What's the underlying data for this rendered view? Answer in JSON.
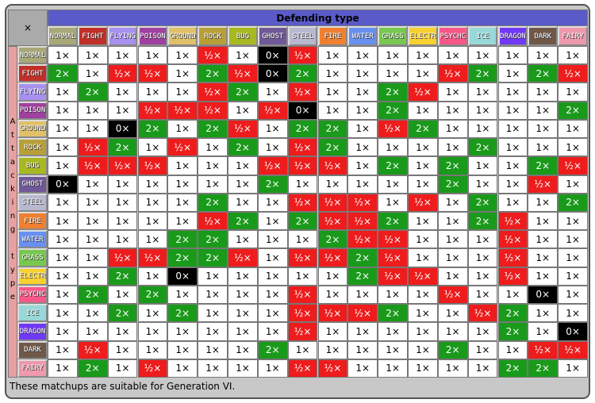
{
  "corner": "×",
  "header": "Defending type",
  "side": "Attacking type",
  "types": [
    "NORMAL",
    "FIGHT",
    "FLYING",
    "POISON",
    "GROUND",
    "ROCK",
    "BUG",
    "GHOST",
    "STEEL",
    "FIRE",
    "WATER",
    "GRASS",
    "ELECTR",
    "PSYCHC",
    "ICE",
    "DRAGON",
    "DARK",
    "FAIRY"
  ],
  "type_colors": [
    "#a8a878",
    "#c03028",
    "#a890f0",
    "#a040a0",
    "#e0c068",
    "#b8a038",
    "#a8b820",
    "#705898",
    "#b8b8d0",
    "#f08030",
    "#6890f0",
    "#78c850",
    "#f8d030",
    "#f85888",
    "#98d8d8",
    "#7038f8",
    "#705848",
    "#ee99ac"
  ],
  "rows": [
    [
      "1×",
      "1×",
      "1×",
      "1×",
      "1×",
      "½×",
      "1×",
      "0×",
      "½×",
      "1×",
      "1×",
      "1×",
      "1×",
      "1×",
      "1×",
      "1×",
      "1×",
      "1×"
    ],
    [
      "2×",
      "1×",
      "½×",
      "½×",
      "1×",
      "2×",
      "½×",
      "0×",
      "2×",
      "1×",
      "1×",
      "1×",
      "1×",
      "½×",
      "2×",
      "1×",
      "2×",
      "½×"
    ],
    [
      "1×",
      "2×",
      "1×",
      "1×",
      "1×",
      "½×",
      "2×",
      "1×",
      "½×",
      "1×",
      "1×",
      "2×",
      "½×",
      "1×",
      "1×",
      "1×",
      "1×",
      "1×"
    ],
    [
      "1×",
      "1×",
      "1×",
      "½×",
      "½×",
      "½×",
      "1×",
      "½×",
      "0×",
      "1×",
      "1×",
      "2×",
      "1×",
      "1×",
      "1×",
      "1×",
      "1×",
      "2×"
    ],
    [
      "1×",
      "1×",
      "0×",
      "2×",
      "1×",
      "2×",
      "½×",
      "1×",
      "2×",
      "2×",
      "1×",
      "½×",
      "2×",
      "1×",
      "1×",
      "1×",
      "1×",
      "1×"
    ],
    [
      "1×",
      "½×",
      "2×",
      "1×",
      "½×",
      "1×",
      "2×",
      "1×",
      "½×",
      "2×",
      "1×",
      "1×",
      "1×",
      "1×",
      "2×",
      "1×",
      "1×",
      "1×"
    ],
    [
      "1×",
      "½×",
      "½×",
      "½×",
      "1×",
      "1×",
      "1×",
      "½×",
      "½×",
      "½×",
      "1×",
      "2×",
      "1×",
      "2×",
      "1×",
      "1×",
      "2×",
      "½×"
    ],
    [
      "0×",
      "1×",
      "1×",
      "1×",
      "1×",
      "1×",
      "1×",
      "2×",
      "1×",
      "1×",
      "1×",
      "1×",
      "1×",
      "2×",
      "1×",
      "1×",
      "½×",
      "1×"
    ],
    [
      "1×",
      "1×",
      "1×",
      "1×",
      "1×",
      "2×",
      "1×",
      "1×",
      "½×",
      "½×",
      "½×",
      "1×",
      "½×",
      "1×",
      "2×",
      "1×",
      "1×",
      "2×"
    ],
    [
      "1×",
      "1×",
      "1×",
      "1×",
      "1×",
      "½×",
      "2×",
      "1×",
      "2×",
      "½×",
      "½×",
      "2×",
      "1×",
      "1×",
      "2×",
      "½×",
      "1×",
      "1×"
    ],
    [
      "1×",
      "1×",
      "1×",
      "1×",
      "2×",
      "2×",
      "1×",
      "1×",
      "1×",
      "2×",
      "½×",
      "½×",
      "1×",
      "1×",
      "1×",
      "½×",
      "1×",
      "1×"
    ],
    [
      "1×",
      "1×",
      "½×",
      "½×",
      "2×",
      "2×",
      "½×",
      "1×",
      "½×",
      "½×",
      "2×",
      "½×",
      "1×",
      "1×",
      "1×",
      "½×",
      "1×",
      "1×"
    ],
    [
      "1×",
      "1×",
      "2×",
      "1×",
      "0×",
      "1×",
      "1×",
      "1×",
      "1×",
      "1×",
      "2×",
      "½×",
      "½×",
      "1×",
      "1×",
      "½×",
      "1×",
      "1×"
    ],
    [
      "1×",
      "2×",
      "1×",
      "2×",
      "1×",
      "1×",
      "1×",
      "1×",
      "½×",
      "1×",
      "1×",
      "1×",
      "1×",
      "½×",
      "1×",
      "1×",
      "0×",
      "1×"
    ],
    [
      "1×",
      "1×",
      "2×",
      "1×",
      "2×",
      "1×",
      "1×",
      "1×",
      "½×",
      "½×",
      "½×",
      "2×",
      "1×",
      "1×",
      "½×",
      "2×",
      "1×",
      "1×"
    ],
    [
      "1×",
      "1×",
      "1×",
      "1×",
      "1×",
      "1×",
      "1×",
      "1×",
      "½×",
      "1×",
      "1×",
      "1×",
      "1×",
      "1×",
      "1×",
      "2×",
      "1×",
      "0×"
    ],
    [
      "1×",
      "½×",
      "1×",
      "1×",
      "1×",
      "1×",
      "1×",
      "2×",
      "1×",
      "1×",
      "1×",
      "1×",
      "1×",
      "2×",
      "1×",
      "1×",
      "½×",
      "½×"
    ],
    [
      "1×",
      "2×",
      "1×",
      "½×",
      "1×",
      "1×",
      "1×",
      "1×",
      "½×",
      "½×",
      "1×",
      "1×",
      "1×",
      "1×",
      "1×",
      "2×",
      "2×",
      "1×"
    ]
  ],
  "footer": "These matchups are suitable for Generation VI."
}
